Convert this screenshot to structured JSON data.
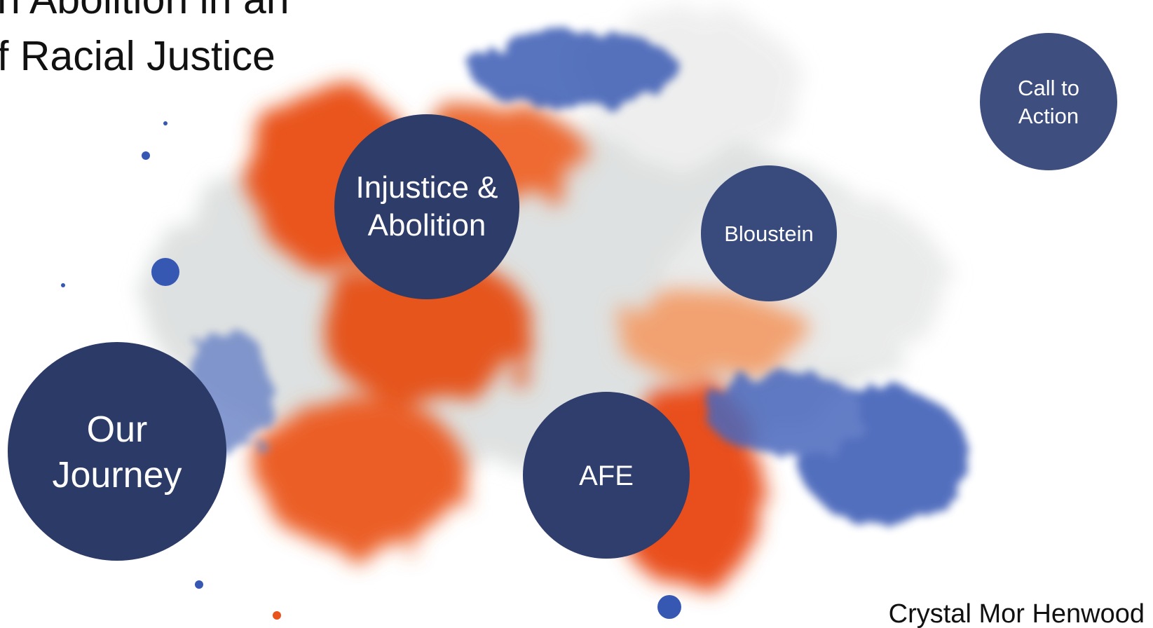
{
  "title": {
    "lines": [
      "n Abolition in an",
      "f Racial Justice"
    ]
  },
  "nodes": [
    {
      "lines": [
        "Injustice &",
        "Abolition"
      ]
    },
    {
      "lines": [
        "Bloustein"
      ]
    },
    {
      "lines": [
        "Call to",
        "Action"
      ]
    },
    {
      "lines": [
        "Our",
        "Journey"
      ]
    },
    {
      "lines": [
        "AFE"
      ]
    }
  ],
  "author": "Crystal Mor Henwood"
}
